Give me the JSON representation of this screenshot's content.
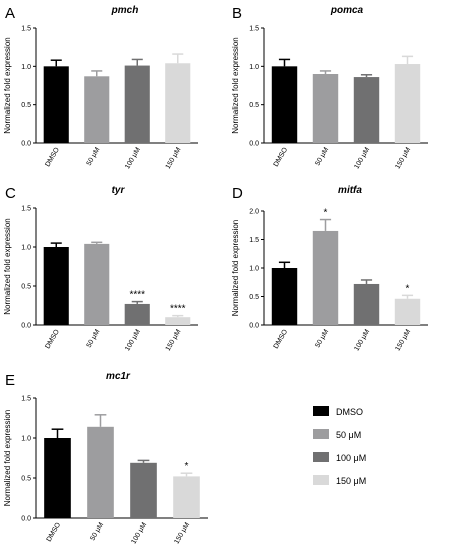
{
  "colors": [
    "#000000",
    "#9d9d9f",
    "#707071",
    "#d9d9d9"
  ],
  "legend": {
    "entries": [
      "DMSO",
      "50 μM",
      "100 μM",
      "150 μM"
    ],
    "placement": "bottom-right"
  },
  "chart_data": [
    {
      "type": "bar",
      "panel": "A",
      "title": "pmch",
      "ylabel": "Normalized fold expression",
      "categories": [
        "DMSO",
        "50 μM",
        "100 μM",
        "150 μM"
      ],
      "values": [
        1.0,
        0.87,
        1.01,
        1.04
      ],
      "errors": [
        0.08,
        0.07,
        0.08,
        0.12
      ],
      "significance": [
        "",
        "",
        "",
        ""
      ],
      "ylim": [
        0,
        1.5
      ],
      "yticks": [
        0.0,
        0.5,
        1.0,
        1.5
      ],
      "ytick_labels": [
        "0.0",
        "0.5",
        "1.0",
        "1.5"
      ]
    },
    {
      "type": "bar",
      "panel": "B",
      "title": "pomca",
      "ylabel": "Normalized fold expression",
      "categories": [
        "DMSO",
        "50 μM",
        "100 μM",
        "150 μM"
      ],
      "values": [
        1.0,
        0.9,
        0.86,
        1.03
      ],
      "errors": [
        0.09,
        0.04,
        0.03,
        0.1
      ],
      "significance": [
        "",
        "",
        "",
        ""
      ],
      "ylim": [
        0,
        1.5
      ],
      "yticks": [
        0.0,
        0.5,
        1.0,
        1.5
      ],
      "ytick_labels": [
        "0.0",
        "0.5",
        "1.0",
        "1.5"
      ]
    },
    {
      "type": "bar",
      "panel": "C",
      "title": "tyr",
      "ylabel": "Normalized fold expression",
      "categories": [
        "DMSO",
        "50 μM",
        "100 μM",
        "150 μM"
      ],
      "values": [
        1.0,
        1.04,
        0.27,
        0.1
      ],
      "errors": [
        0.05,
        0.02,
        0.03,
        0.02
      ],
      "significance": [
        "",
        "",
        "****",
        "****"
      ],
      "ylim": [
        0,
        1.5
      ],
      "yticks": [
        0.0,
        0.5,
        1.0,
        1.5
      ],
      "ytick_labels": [
        "0.0",
        "0.5",
        "1.0",
        "1.5"
      ]
    },
    {
      "type": "bar",
      "panel": "D",
      "title": "mitfa",
      "ylabel": "Normalized fold expression",
      "categories": [
        "DMSO",
        "50 μM",
        "100 μM",
        "150 μM"
      ],
      "values": [
        1.0,
        1.65,
        0.72,
        0.46
      ],
      "errors": [
        0.1,
        0.2,
        0.07,
        0.06
      ],
      "significance": [
        "",
        "*",
        "",
        "*"
      ],
      "ylim": [
        0,
        2.0
      ],
      "yticks": [
        0.0,
        0.5,
        1.0,
        1.5,
        2.0
      ],
      "ytick_labels": [
        "0.0",
        "0.5",
        "1.0",
        "1.5",
        "2.0"
      ]
    },
    {
      "type": "bar",
      "panel": "E",
      "title": "mc1r",
      "ylabel": "Normalized fold expression",
      "categories": [
        "DMSO",
        "50 μM",
        "100 μM",
        "150 μM"
      ],
      "values": [
        1.0,
        1.14,
        0.69,
        0.52
      ],
      "errors": [
        0.11,
        0.15,
        0.03,
        0.04
      ],
      "significance": [
        "",
        "",
        "",
        "*"
      ],
      "ylim": [
        0,
        1.5
      ],
      "yticks": [
        0.0,
        0.5,
        1.0,
        1.5
      ],
      "ytick_labels": [
        "0.0",
        "0.5",
        "1.0",
        "1.5"
      ]
    }
  ]
}
